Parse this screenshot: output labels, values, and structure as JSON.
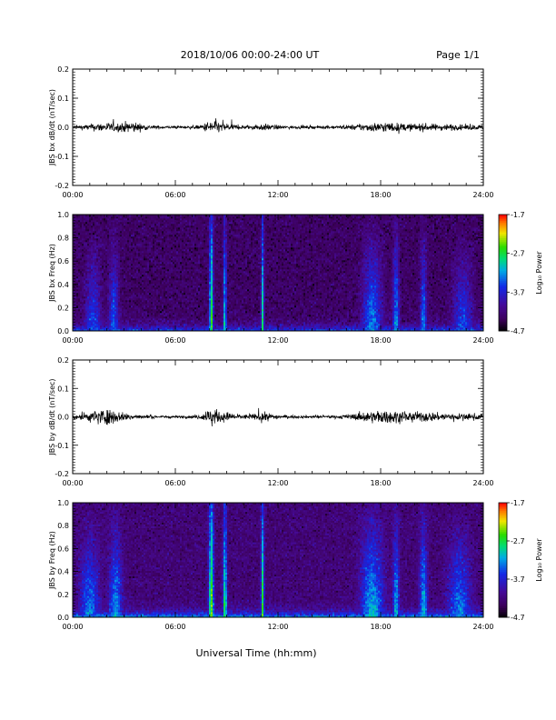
{
  "header": {
    "title": "2018/10/06  00:00-24:00 UT",
    "page": "Page 1/1"
  },
  "xaxis_label": "Universal Time (hh:mm)",
  "chart_data": [
    {
      "type": "line",
      "ylabel": "JBS bx dB/dt (nT/sec)",
      "x_ticks": [
        "00:00",
        "06:00",
        "12:00",
        "18:00",
        "24:00"
      ],
      "xlim": [
        0,
        24
      ],
      "ylim": [
        -0.2,
        0.2
      ],
      "y_ticks": [
        "0.2",
        "0.1",
        "0.0",
        "-0.1",
        "-0.2"
      ],
      "y_tick_values": [
        0.2,
        0.1,
        0.0,
        -0.1,
        -0.2
      ],
      "series": [
        {
          "x": [
            0,
            0.5,
            1,
            1.5,
            2,
            2.5,
            3,
            3.5,
            4,
            4.5,
            5,
            5.5,
            6,
            6.5,
            7,
            7.5,
            8,
            8.25,
            8.5,
            9,
            9.5,
            10,
            10.5,
            11,
            11.5,
            12,
            12.5,
            13,
            13.5,
            14,
            14.5,
            15,
            15.5,
            16,
            16.5,
            17,
            17.5,
            18,
            18.5,
            19,
            19.5,
            20,
            20.5,
            21,
            21.5,
            22,
            22.5,
            23,
            23.5,
            24
          ],
          "envelope": [
            0.012,
            0.014,
            0.018,
            0.025,
            0.028,
            0.025,
            0.03,
            0.035,
            0.02,
            0.012,
            0.01,
            0.008,
            0.008,
            0.008,
            0.01,
            0.012,
            0.04,
            0.055,
            0.03,
            0.025,
            0.015,
            0.012,
            0.012,
            0.02,
            0.018,
            0.012,
            0.01,
            0.008,
            0.008,
            0.008,
            0.008,
            0.009,
            0.01,
            0.012,
            0.016,
            0.022,
            0.025,
            0.03,
            0.028,
            0.025,
            0.022,
            0.02,
            0.022,
            0.02,
            0.018,
            0.02,
            0.016,
            0.015,
            0.016,
            0.014
          ]
        }
      ]
    },
    {
      "type": "heatmap",
      "ylabel": "JBS bx Freq (Hz)",
      "x_ticks": [
        "00:00",
        "06:00",
        "12:00",
        "18:00",
        "24:00"
      ],
      "xlim": [
        0,
        24
      ],
      "ylim": [
        0,
        1
      ],
      "y_ticks": [
        "1.0",
        "0.8",
        "0.6",
        "0.4",
        "0.2",
        "0.0"
      ],
      "y_tick_values": [
        1.0,
        0.8,
        0.6,
        0.4,
        0.2,
        0.0
      ],
      "colorbar_label": "Log₁₀ Power",
      "colorbar_ticks": [
        "-1.7",
        "-2.7",
        "-3.7",
        "-4.7"
      ],
      "colorbar_values": [
        -1.7,
        -2.7,
        -3.7,
        -4.7
      ],
      "clim": [
        -4.7,
        -1.7
      ],
      "background_power": -4.4,
      "low_freq_enhancement": -3.4,
      "bursts": [
        {
          "t": 1.2,
          "width": 1.0,
          "power": -3.9
        },
        {
          "t": 2.4,
          "width": 0.6,
          "power": -3.8
        },
        {
          "t": 8.1,
          "width": 0.25,
          "power": -3.0
        },
        {
          "t": 8.9,
          "width": 0.2,
          "power": -3.3
        },
        {
          "t": 11.1,
          "width": 0.18,
          "power": -3.2
        },
        {
          "t": 17.5,
          "width": 1.2,
          "power": -3.7
        },
        {
          "t": 18.9,
          "width": 0.4,
          "power": -3.6
        },
        {
          "t": 20.5,
          "width": 0.4,
          "power": -3.7
        },
        {
          "t": 22.8,
          "width": 1.2,
          "power": -3.9
        }
      ]
    },
    {
      "type": "line",
      "ylabel": "JBS by dB/dt (nT/sec)",
      "x_ticks": [
        "00:00",
        "06:00",
        "12:00",
        "18:00",
        "24:00"
      ],
      "xlim": [
        0,
        24
      ],
      "ylim": [
        -0.2,
        0.2
      ],
      "y_ticks": [
        "0.2",
        "0.1",
        "0.0",
        "-0.1",
        "-0.2"
      ],
      "y_tick_values": [
        0.2,
        0.1,
        0.0,
        -0.1,
        -0.2
      ],
      "series": [
        {
          "x": [
            0,
            0.5,
            1,
            1.5,
            2,
            2.5,
            3,
            3.5,
            4,
            4.5,
            5,
            5.5,
            6,
            6.5,
            7,
            7.5,
            8,
            8.25,
            8.5,
            9,
            9.5,
            10,
            10.5,
            11,
            11.5,
            12,
            12.5,
            13,
            13.5,
            14,
            14.5,
            15,
            15.5,
            16,
            16.5,
            17,
            17.5,
            18,
            18.5,
            19,
            19.5,
            20,
            20.5,
            21,
            21.5,
            22,
            22.5,
            23,
            23.5,
            24
          ],
          "envelope": [
            0.018,
            0.022,
            0.03,
            0.045,
            0.05,
            0.035,
            0.025,
            0.018,
            0.012,
            0.01,
            0.008,
            0.008,
            0.008,
            0.008,
            0.01,
            0.015,
            0.05,
            0.06,
            0.03,
            0.03,
            0.018,
            0.014,
            0.015,
            0.03,
            0.022,
            0.012,
            0.01,
            0.008,
            0.008,
            0.008,
            0.008,
            0.009,
            0.01,
            0.014,
            0.02,
            0.03,
            0.035,
            0.04,
            0.038,
            0.035,
            0.03,
            0.028,
            0.03,
            0.028,
            0.022,
            0.025,
            0.02,
            0.018,
            0.02,
            0.016
          ]
        }
      ]
    },
    {
      "type": "heatmap",
      "ylabel": "JBS by Freq (Hz)",
      "x_ticks": [
        "00:00",
        "06:00",
        "12:00",
        "18:00",
        "24:00"
      ],
      "xlim": [
        0,
        24
      ],
      "ylim": [
        0,
        1
      ],
      "y_ticks": [
        "1.0",
        "0.8",
        "0.6",
        "0.4",
        "0.2",
        "0.0"
      ],
      "y_tick_values": [
        1.0,
        0.8,
        0.6,
        0.4,
        0.2,
        0.0
      ],
      "colorbar_label": "Log₁₀ Power",
      "colorbar_ticks": [
        "-1.7",
        "-2.7",
        "-3.7",
        "-4.7"
      ],
      "colorbar_values": [
        -1.7,
        -2.7,
        -3.7,
        -4.7
      ],
      "clim": [
        -4.7,
        -1.7
      ],
      "background_power": -4.3,
      "low_freq_enhancement": -3.1,
      "bursts": [
        {
          "t": 1.0,
          "width": 1.2,
          "power": -3.7
        },
        {
          "t": 2.5,
          "width": 0.8,
          "power": -3.6
        },
        {
          "t": 8.1,
          "width": 0.3,
          "power": -2.8
        },
        {
          "t": 8.9,
          "width": 0.25,
          "power": -3.1
        },
        {
          "t": 11.1,
          "width": 0.2,
          "power": -3.0
        },
        {
          "t": 17.5,
          "width": 1.4,
          "power": -3.5
        },
        {
          "t": 18.9,
          "width": 0.4,
          "power": -3.5
        },
        {
          "t": 20.5,
          "width": 0.5,
          "power": -3.5
        },
        {
          "t": 22.6,
          "width": 1.4,
          "power": -3.7
        }
      ]
    }
  ]
}
